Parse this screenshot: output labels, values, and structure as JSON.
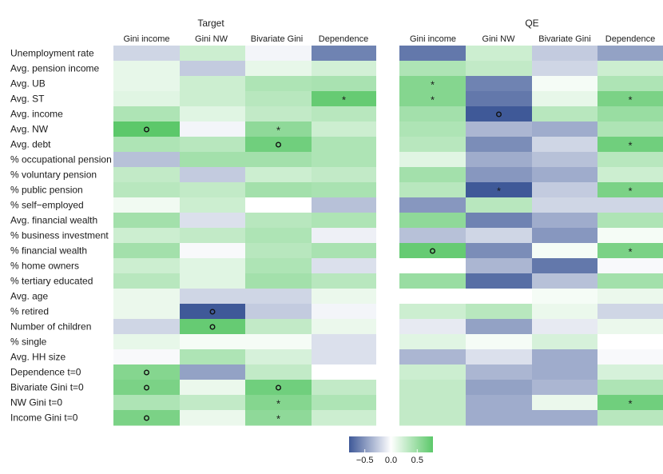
{
  "chart_data": {
    "type": "heatmap",
    "rows": [
      "Unemployment rate",
      "Avg. pension income",
      "Avg. UB",
      "Avg. ST",
      "Avg. income",
      "Avg. NW",
      "Avg. debt",
      "% occupational pension",
      "% voluntary pension",
      "% public pension",
      "% self−employed",
      "Avg. financial wealth",
      "% business investment",
      "% financial wealth",
      "% home owners",
      "% tertiary educated",
      "Avg. age",
      "% retired",
      "Number of children",
      "% single",
      "Avg. HH size",
      "Dependence t=0",
      "Bivariate Gini t=0",
      "NW Gini t=0",
      "Income Gini t=0"
    ],
    "color_scale": {
      "low": "#3f5998",
      "mid": "#ffffff",
      "high": "#5cc86a",
      "range": [
        -0.8,
        0.8
      ]
    },
    "legend": {
      "ticks": [
        "−0.5",
        "0.0",
        "0.5"
      ],
      "tick_values": [
        -0.5,
        0,
        0.5
      ]
    },
    "panels": [
      {
        "title": "Target",
        "columns": [
          "Gini income",
          "Gini NW",
          "Bivariate Gini",
          "Dependence"
        ],
        "values": [
          [
            -0.2,
            0.25,
            -0.05,
            -0.6
          ],
          [
            0.12,
            -0.25,
            0.12,
            0.22
          ],
          [
            0.12,
            0.25,
            0.4,
            0.42
          ],
          [
            0.15,
            0.25,
            0.35,
            0.75
          ],
          [
            0.4,
            0.15,
            0.3,
            0.35
          ],
          [
            0.85,
            -0.05,
            0.55,
            0.25
          ],
          [
            0.4,
            0.35,
            0.7,
            0.4
          ],
          [
            -0.3,
            0.45,
            0.45,
            0.4
          ],
          [
            0.3,
            -0.25,
            0.25,
            0.3
          ],
          [
            0.35,
            0.3,
            0.45,
            0.42
          ],
          [
            0.07,
            0.25,
            0.0,
            -0.3
          ],
          [
            0.45,
            -0.15,
            0.35,
            0.4
          ],
          [
            0.25,
            0.3,
            0.4,
            -0.07
          ],
          [
            0.45,
            -0.03,
            0.35,
            0.42
          ],
          [
            0.25,
            0.15,
            0.4,
            -0.15
          ],
          [
            0.35,
            0.15,
            0.45,
            0.35
          ],
          [
            0.1,
            -0.2,
            -0.2,
            0.1
          ],
          [
            0.1,
            -0.9,
            -0.25,
            -0.05
          ],
          [
            -0.2,
            0.75,
            0.3,
            0.1
          ],
          [
            0.12,
            0.05,
            0.05,
            -0.15
          ],
          [
            -0.03,
            0.4,
            0.2,
            -0.15
          ],
          [
            0.6,
            -0.45,
            0.3,
            0.0
          ],
          [
            0.65,
            0.1,
            0.7,
            0.3
          ],
          [
            0.4,
            0.3,
            0.6,
            0.4
          ],
          [
            0.65,
            0.1,
            0.55,
            0.25
          ]
        ],
        "markers": [
          {
            "row": 3,
            "col": 3,
            "symbol": "*"
          },
          {
            "row": 5,
            "col": 0,
            "symbol": "o"
          },
          {
            "row": 5,
            "col": 2,
            "symbol": "*"
          },
          {
            "row": 6,
            "col": 2,
            "symbol": "o"
          },
          {
            "row": 17,
            "col": 1,
            "symbol": "o"
          },
          {
            "row": 18,
            "col": 1,
            "symbol": "o"
          },
          {
            "row": 21,
            "col": 0,
            "symbol": "o"
          },
          {
            "row": 22,
            "col": 0,
            "symbol": "o"
          },
          {
            "row": 22,
            "col": 2,
            "symbol": "o"
          },
          {
            "row": 23,
            "col": 2,
            "symbol": "*"
          },
          {
            "row": 24,
            "col": 0,
            "symbol": "o"
          },
          {
            "row": 24,
            "col": 2,
            "symbol": "*"
          }
        ]
      },
      {
        "title": "QE",
        "columns": [
          "Gini income",
          "Gini NW",
          "Bivariate Gini",
          "Dependence"
        ],
        "values": [
          [
            -0.65,
            0.25,
            -0.25,
            -0.45
          ],
          [
            0.4,
            0.3,
            -0.2,
            0.25
          ],
          [
            0.6,
            -0.6,
            0.05,
            0.4
          ],
          [
            0.6,
            -0.65,
            0.12,
            0.65
          ],
          [
            0.45,
            -0.85,
            0.35,
            0.5
          ],
          [
            0.4,
            -0.35,
            -0.4,
            0.4
          ],
          [
            0.35,
            -0.55,
            -0.2,
            0.7
          ],
          [
            0.15,
            -0.4,
            -0.3,
            0.35
          ],
          [
            0.45,
            -0.5,
            -0.4,
            0.25
          ],
          [
            0.35,
            -0.85,
            -0.25,
            0.65
          ],
          [
            -0.5,
            0.35,
            -0.2,
            -0.2
          ],
          [
            0.55,
            -0.6,
            -0.4,
            0.4
          ],
          [
            -0.3,
            -0.2,
            -0.5,
            0.05
          ],
          [
            0.75,
            -0.55,
            0.05,
            0.65
          ],
          [
            0.0,
            -0.35,
            -0.65,
            -0.03
          ],
          [
            0.5,
            -0.7,
            -0.3,
            0.45
          ],
          [
            0.0,
            0.0,
            0.05,
            0.1
          ],
          [
            0.25,
            0.35,
            0.1,
            -0.2
          ],
          [
            -0.1,
            -0.45,
            -0.1,
            0.1
          ],
          [
            0.15,
            0.05,
            0.2,
            0.0
          ],
          [
            -0.35,
            -0.15,
            -0.4,
            -0.03
          ],
          [
            0.25,
            -0.35,
            -0.4,
            0.2
          ],
          [
            0.3,
            -0.45,
            -0.35,
            0.4
          ],
          [
            0.3,
            -0.4,
            0.1,
            0.7
          ],
          [
            0.3,
            -0.4,
            -0.4,
            0.35
          ]
        ],
        "markers": [
          {
            "row": 2,
            "col": 0,
            "symbol": "*"
          },
          {
            "row": 3,
            "col": 0,
            "symbol": "*"
          },
          {
            "row": 3,
            "col": 3,
            "symbol": "*"
          },
          {
            "row": 4,
            "col": 1,
            "symbol": "o"
          },
          {
            "row": 6,
            "col": 3,
            "symbol": "*"
          },
          {
            "row": 9,
            "col": 1,
            "symbol": "*"
          },
          {
            "row": 9,
            "col": 3,
            "symbol": "*"
          },
          {
            "row": 13,
            "col": 0,
            "symbol": "o"
          },
          {
            "row": 13,
            "col": 3,
            "symbol": "*"
          },
          {
            "row": 23,
            "col": 3,
            "symbol": "*"
          }
        ]
      }
    ]
  }
}
